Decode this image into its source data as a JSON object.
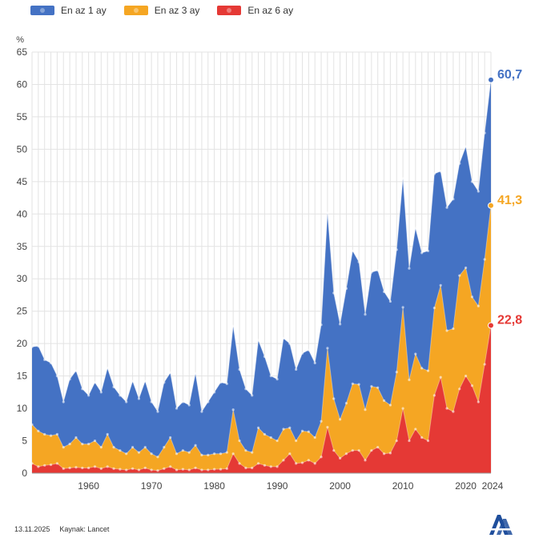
{
  "legend": [
    {
      "label": "En az 1 ay",
      "color": "#4472c4"
    },
    {
      "label": "En az 3 ay",
      "color": "#f5a623"
    },
    {
      "label": "En az 6 ay",
      "color": "#e53935"
    }
  ],
  "footer": {
    "date": "13.11.2025",
    "source": "Kaynak: Lancet"
  },
  "logo": {
    "name": "aa-logo-icon",
    "color": "#1f4e9c"
  },
  "end_labels": {
    "s1": "60,7",
    "s3": "41,3",
    "s6": "22,8"
  },
  "chart_data": {
    "type": "area",
    "ylabel": "%",
    "xlim": [
      1951,
      2024
    ],
    "ylim": [
      0,
      65
    ],
    "yticks": [
      0,
      5,
      10,
      15,
      20,
      25,
      30,
      35,
      40,
      45,
      50,
      55,
      60,
      65
    ],
    "xticks": [
      1960,
      1970,
      1980,
      1990,
      2000,
      2010,
      2020,
      2024
    ],
    "grid": true,
    "legend_position": "top-left",
    "x": [
      1951,
      1952,
      1953,
      1954,
      1955,
      1956,
      1957,
      1958,
      1959,
      1960,
      1961,
      1962,
      1963,
      1964,
      1965,
      1966,
      1967,
      1968,
      1969,
      1970,
      1971,
      1972,
      1973,
      1974,
      1975,
      1976,
      1977,
      1978,
      1979,
      1980,
      1981,
      1982,
      1983,
      1984,
      1985,
      1986,
      1987,
      1988,
      1989,
      1990,
      1991,
      1992,
      1993,
      1994,
      1995,
      1996,
      1997,
      1998,
      1999,
      2000,
      2001,
      2002,
      2003,
      2004,
      2005,
      2006,
      2007,
      2008,
      2009,
      2010,
      2011,
      2012,
      2013,
      2014,
      2015,
      2016,
      2017,
      2018,
      2019,
      2020,
      2021,
      2022,
      2023,
      2024
    ],
    "series": [
      {
        "name": "En az 1 ay",
        "color": "#4472c4",
        "values": [
          19.5,
          19.6,
          17.5,
          17,
          15,
          11,
          14.5,
          15.8,
          13,
          12,
          14,
          12.5,
          16.2,
          13.3,
          12,
          11,
          14.2,
          11.5,
          14.2,
          11,
          9.5,
          14,
          15.5,
          10,
          11,
          10.5,
          15.4,
          9.5,
          11,
          12.5,
          14,
          13.8,
          22.7,
          16,
          13,
          12,
          20.5,
          18,
          15,
          14.5,
          20.8,
          20,
          16,
          18.5,
          19,
          17,
          22.9,
          40.2,
          27.8,
          23,
          28.5,
          34.3,
          32.6,
          24.5,
          31,
          31.3,
          28,
          26.5,
          34.5,
          45.5,
          31.6,
          37.8,
          34,
          34.3,
          46.2,
          46.6,
          41,
          42.3,
          47.8,
          50.4,
          45,
          43.5,
          52.5,
          60.7
        ]
      },
      {
        "name": "En az 3 ay",
        "color": "#f5a623",
        "values": [
          7.5,
          6.5,
          6,
          5.8,
          6,
          4,
          4.5,
          5.5,
          4.5,
          4.5,
          5,
          4,
          6,
          4,
          3.5,
          3,
          4,
          3.2,
          4,
          3,
          2.5,
          4,
          5.5,
          3,
          3.5,
          3.2,
          4.3,
          2.8,
          2.8,
          3,
          3,
          3.2,
          9.8,
          5,
          3.5,
          3.2,
          7,
          6,
          5.5,
          5,
          6.8,
          7,
          5,
          6.5,
          6.4,
          5.5,
          8,
          19.3,
          11.5,
          8.3,
          10.8,
          13.8,
          13.7,
          9.8,
          13.4,
          13.2,
          11.2,
          10.5,
          15.6,
          25.6,
          14.4,
          18.4,
          16.2,
          15.8,
          25.5,
          29,
          22,
          22.3,
          30.5,
          31.7,
          27.2,
          25.8,
          33,
          41.3
        ]
      },
      {
        "name": "En az 6 ay",
        "color": "#e53935",
        "values": [
          1.5,
          1,
          1.2,
          1.3,
          1.5,
          0.7,
          0.8,
          0.9,
          0.8,
          0.8,
          1,
          0.7,
          1,
          0.7,
          0.6,
          0.5,
          0.7,
          0.5,
          0.8,
          0.5,
          0.4,
          0.7,
          1,
          0.5,
          0.6,
          0.5,
          0.8,
          0.5,
          0.5,
          0.6,
          0.6,
          0.7,
          3,
          1.5,
          0.8,
          0.8,
          1.5,
          1.2,
          1,
          1,
          2,
          3,
          1.5,
          1.6,
          2,
          1.5,
          2.5,
          7.1,
          3.5,
          2.3,
          3,
          3.5,
          3.5,
          2,
          3.5,
          4,
          3,
          3.1,
          5,
          10,
          5,
          6.8,
          5.5,
          5,
          12,
          14.8,
          10,
          9.5,
          13,
          15,
          13.5,
          11,
          16.8,
          22.8
        ]
      }
    ]
  }
}
